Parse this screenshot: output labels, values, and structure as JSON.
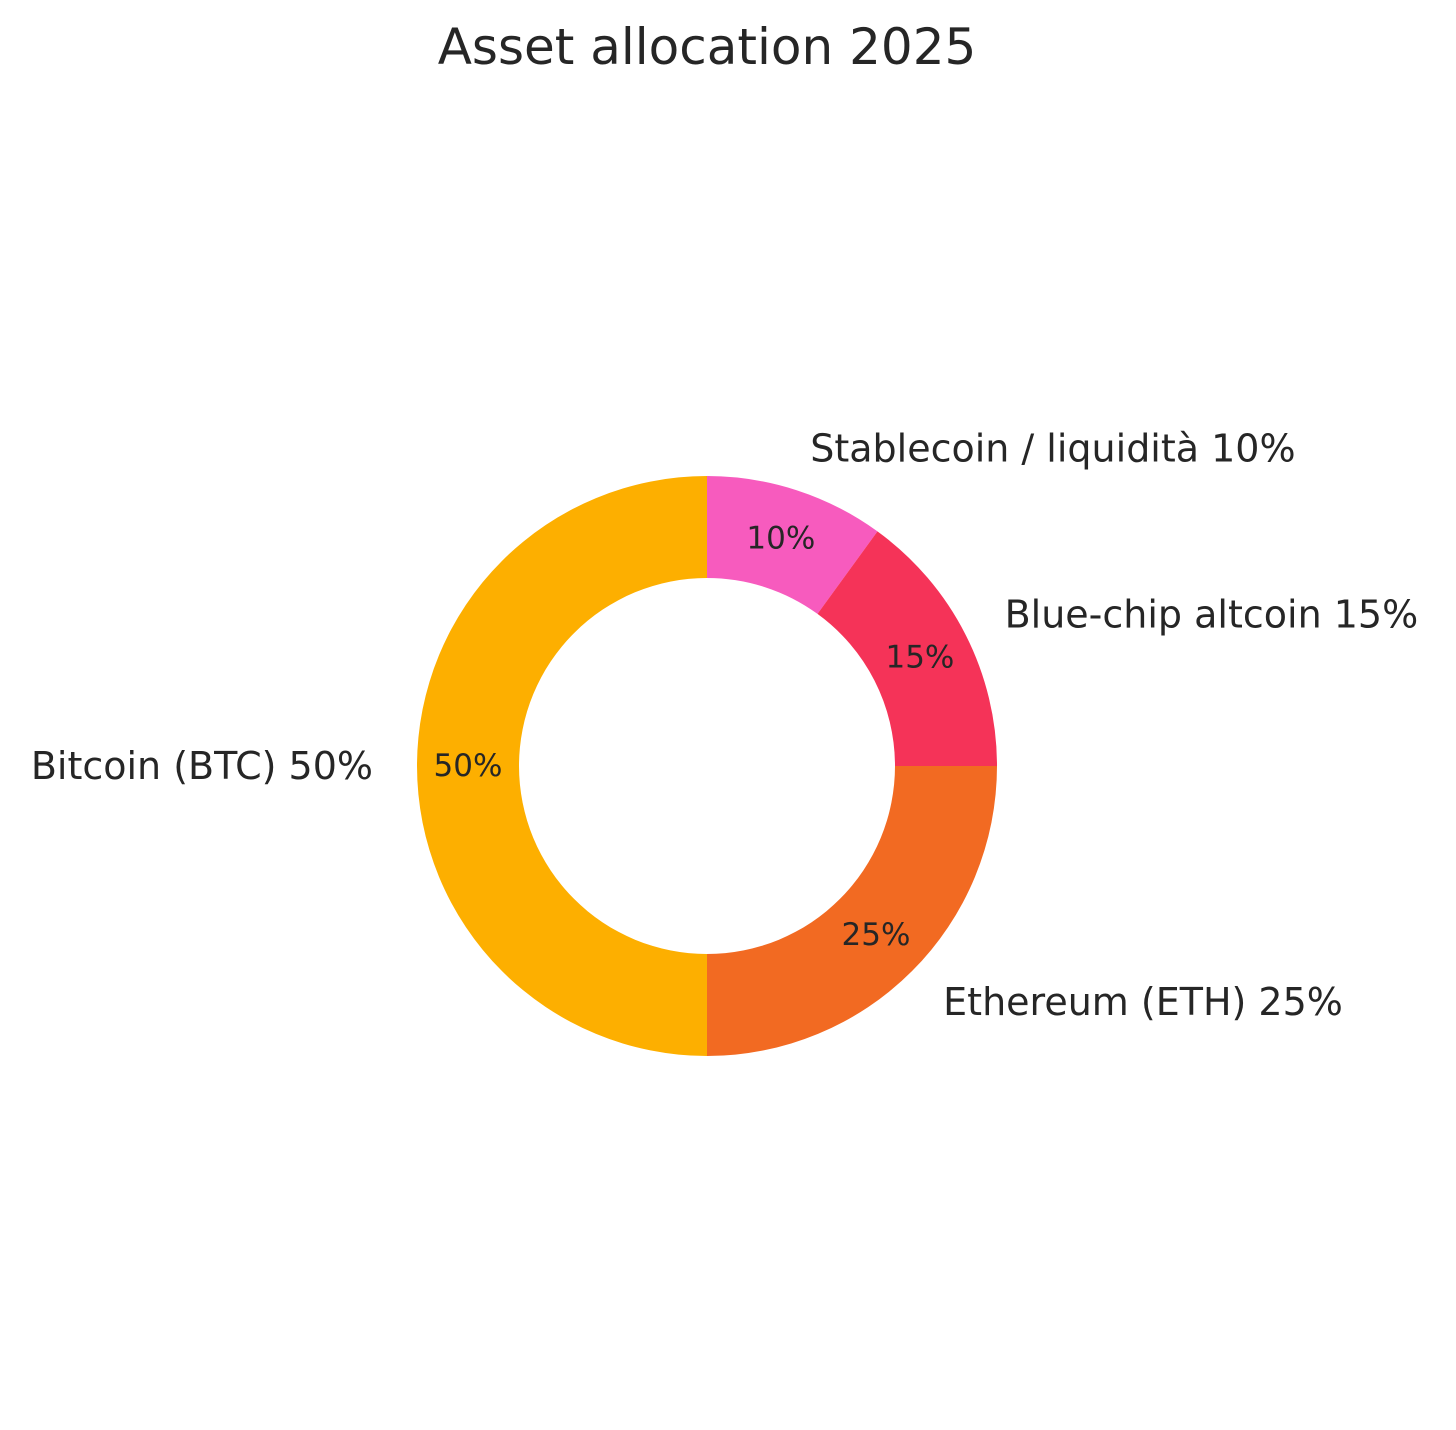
{
  "chart_data": {
    "type": "pie",
    "variant": "donut",
    "title": "Asset allocation 2025",
    "start_angle_deg": 90,
    "direction": "clockwise",
    "slices": [
      {
        "name": "Stablecoin / liquidità",
        "value": 10,
        "pct_label": "10%",
        "outer_label": "Stablecoin / liquidità 10%",
        "color": "#F75BBE"
      },
      {
        "name": "Blue-chip altcoin",
        "value": 15,
        "pct_label": "15%",
        "outer_label": "Blue-chip altcoin 15%",
        "color": "#F53358"
      },
      {
        "name": "Ethereum (ETH)",
        "value": 25,
        "pct_label": "25%",
        "outer_label": "Ethereum (ETH) 25%",
        "color": "#F26A22"
      },
      {
        "name": "Bitcoin (BTC)",
        "value": 50,
        "pct_label": "50%",
        "outer_label": "Bitcoin (BTC) 50%",
        "color": "#FDAF00"
      }
    ]
  }
}
